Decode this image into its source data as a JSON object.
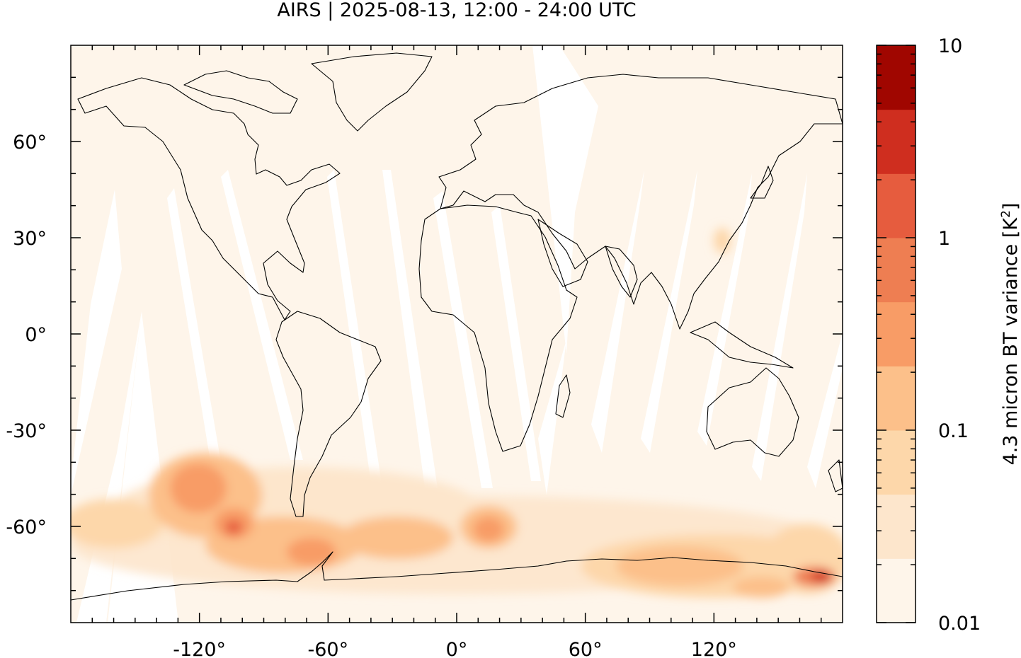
{
  "title": "AIRS | 2025-08-13, 12:00 - 24:00 UTC",
  "map": {
    "projection": "equirectangular",
    "lon_range": [
      -180,
      180
    ],
    "lat_range": [
      -90,
      90
    ],
    "x_ticks": [
      {
        "value": -120,
        "label": "-120°"
      },
      {
        "value": -60,
        "label": "-60°"
      },
      {
        "value": 0,
        "label": "0°"
      },
      {
        "value": 60,
        "label": "60°"
      },
      {
        "value": 120,
        "label": "120°"
      }
    ],
    "y_ticks": [
      {
        "value": 60,
        "label": "60°"
      },
      {
        "value": 30,
        "label": "30°"
      },
      {
        "value": 0,
        "label": "0°"
      },
      {
        "value": -30,
        "label": "-30°"
      },
      {
        "value": -60,
        "label": "-60°"
      }
    ],
    "background_color": "#fef5ea",
    "gap_color": "#ffffff",
    "coastline_color": "#000000"
  },
  "colorbar": {
    "label_main": "4.3 micron BT variance [K",
    "label_sup": "2",
    "label_end": "]",
    "scale": "log",
    "range": [
      0.01,
      10
    ],
    "ticks": [
      {
        "value": 10,
        "label": "10"
      },
      {
        "value": 1,
        "label": "1"
      },
      {
        "value": 0.1,
        "label": "0.1"
      },
      {
        "value": 0.01,
        "label": "0.01"
      }
    ],
    "colors": [
      "#fef5ea",
      "#fde6cc",
      "#fdd7aa",
      "#fcc08a",
      "#f89c66",
      "#ee7e52",
      "#e65c3e",
      "#cf2e1f",
      "#a00600"
    ]
  }
}
